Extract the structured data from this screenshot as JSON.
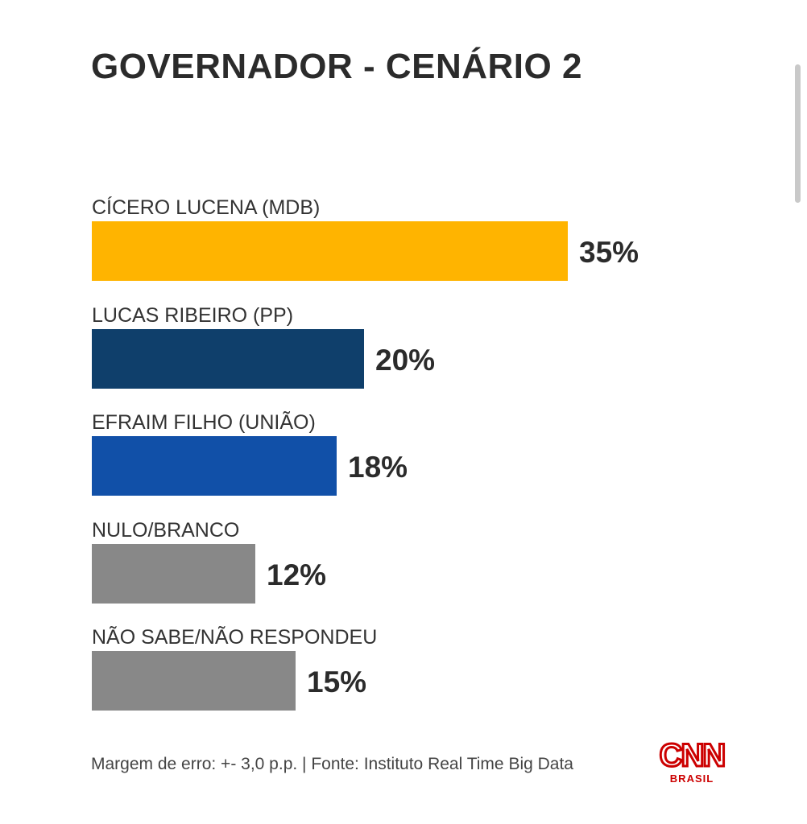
{
  "chart_data": {
    "type": "bar",
    "orientation": "horizontal",
    "title": "GOVERNADOR - CENÁRIO 2",
    "categories": [
      "CÍCERO LUCENA (MDB)",
      "LUCAS RIBEIRO (PP)",
      "EFRAIM FILHO (UNIÃO)",
      "NULO/BRANCO",
      "NÃO SABE/NÃO RESPONDEU"
    ],
    "values": [
      35,
      20,
      18,
      12,
      15
    ],
    "value_labels": [
      "35%",
      "20%",
      "18%",
      "12%",
      "15%"
    ],
    "colors": [
      "#FFB400",
      "#0F3F6B",
      "#1150A8",
      "#888888",
      "#888888"
    ],
    "xlim": [
      0,
      35
    ],
    "grid": false,
    "legend": "none"
  },
  "footer": {
    "note": "Margem de erro: +- 3,0 p.p. | Fonte: Instituto Real Time Big Data"
  },
  "logo": {
    "name": "cnn-brasil-logo",
    "text": "CNN",
    "subtext": "BRASIL",
    "color": "#CC0000"
  },
  "scrollbar": {
    "color": "#C9C9C9"
  }
}
